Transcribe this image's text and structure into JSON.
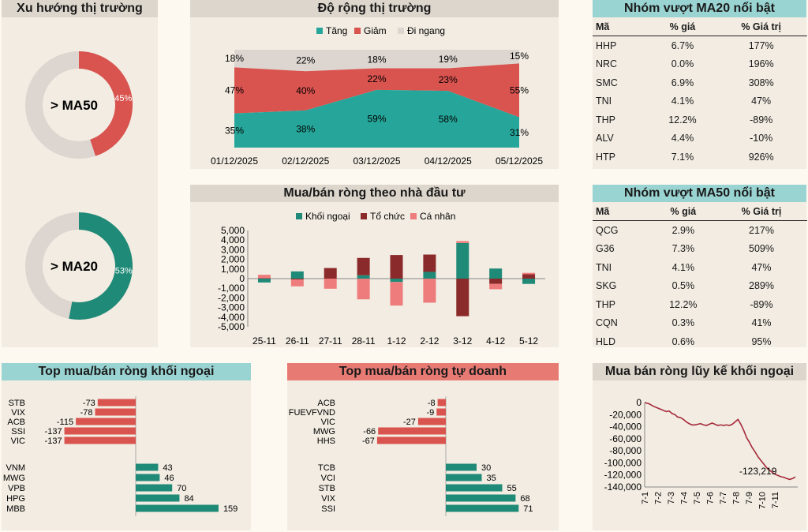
{
  "trend": {
    "title": "Xu hướng thị trường",
    "ma50": {
      "label": "> MA50",
      "pct_label": "45%",
      "fraction": 0.45,
      "color": "#d9534f"
    },
    "ma20": {
      "label": "> MA20",
      "pct_label": "53%",
      "fraction": 0.53,
      "color": "#1f8a77"
    }
  },
  "breadth": {
    "title": "Độ rộng thị trường",
    "legend": [
      "Tăng",
      "Giảm",
      "Đi ngang"
    ],
    "colors": [
      "#26a69a",
      "#d9534f",
      "#ddd6d0"
    ]
  },
  "netflow": {
    "title": "Mua/bán ròng theo nhà đầu tư",
    "legend": [
      "Khối ngoại",
      "Tổ chức",
      "Cá nhân"
    ],
    "colors": [
      "#1f8a77",
      "#8b2a2a",
      "#ef7c7c"
    ]
  },
  "ma20_table": {
    "title": "Nhóm vượt MA20 nổi bật",
    "headers": [
      "Mã",
      "% giá",
      "% Giá trị"
    ],
    "rows": [
      [
        "HHP",
        "6.7%",
        "177%"
      ],
      [
        "NRC",
        "0.0%",
        "196%"
      ],
      [
        "SMC",
        "6.9%",
        "308%"
      ],
      [
        "TNI",
        "4.1%",
        "47%"
      ],
      [
        "THP",
        "12.2%",
        "-89%"
      ],
      [
        "ALV",
        "4.4%",
        "-10%"
      ],
      [
        "HTP",
        "7.1%",
        "926%"
      ]
    ]
  },
  "ma50_table": {
    "title": "Nhóm vượt MA50 nổi bật",
    "headers": [
      "Mã",
      "% giá",
      "% Giá trị"
    ],
    "rows": [
      [
        "QCG",
        "2.9%",
        "217%"
      ],
      [
        "G36",
        "7.3%",
        "509%"
      ],
      [
        "TNI",
        "4.1%",
        "47%"
      ],
      [
        "SKG",
        "0.5%",
        "289%"
      ],
      [
        "THP",
        "12.2%",
        "-89%"
      ],
      [
        "CQN",
        "0.3%",
        "41%"
      ],
      [
        "HLD",
        "0.6%",
        "95%"
      ]
    ]
  },
  "foreign_top": {
    "title": "Top mua/bán ròng khối ngoại"
  },
  "prop_top": {
    "title": "Top mua/bán ròng tự doanh"
  },
  "cumulative": {
    "title": "Mua bán ròng lũy kế khối ngoại"
  },
  "chart_data": [
    {
      "type": "area",
      "title": "Độ rộng thị trường",
      "stacked_percent": true,
      "categories": [
        "01/12/2025",
        "02/12/2025",
        "03/12/2025",
        "04/12/2025",
        "05/12/2025"
      ],
      "series": [
        {
          "name": "Tăng",
          "values": [
            35,
            38,
            59,
            58,
            31
          ]
        },
        {
          "name": "Giảm",
          "values": [
            47,
            40,
            22,
            23,
            55
          ]
        },
        {
          "name": "Đi ngang",
          "values": [
            18,
            22,
            18,
            19,
            15
          ]
        }
      ],
      "labels": {
        "Tăng": [
          "35%",
          "38%",
          "59%",
          "58%",
          "31%"
        ],
        "Giảm": [
          "47%",
          "40%",
          "22%",
          "23%",
          "55%"
        ],
        "Đi ngang": [
          "18%",
          "22%",
          "18%",
          "19%",
          "15%"
        ]
      }
    },
    {
      "type": "bar",
      "title": "Mua/bán ròng theo nhà đầu tư",
      "stacked": true,
      "categories": [
        "25-11",
        "26-11",
        "27-11",
        "28-11",
        "1-12",
        "2-12",
        "3-12",
        "4-12",
        "5-12"
      ],
      "series": [
        {
          "name": "Khối ngoại",
          "values": [
            -400,
            750,
            0,
            350,
            -350,
            700,
            3700,
            1050,
            -550
          ]
        },
        {
          "name": "Tổ chức",
          "values": [
            50,
            -100,
            1100,
            1800,
            2450,
            1800,
            -3900,
            -550,
            450
          ]
        },
        {
          "name": "Cá nhân",
          "values": [
            350,
            -700,
            -1050,
            -2150,
            -2450,
            -2500,
            200,
            -550,
            150
          ]
        }
      ],
      "ylim": [
        -5000,
        5000
      ],
      "yticks": [
        "5,000",
        "4,000",
        "3,000",
        "2,000",
        "1,000",
        "0",
        "-1,000",
        "-2,000",
        "-3,000",
        "-4,000",
        "-5,000"
      ]
    },
    {
      "type": "bar",
      "title": "Top mua/bán ròng khối ngoại",
      "orientation": "horizontal",
      "sell": {
        "categories": [
          "STB",
          "VIX",
          "ACB",
          "SSI",
          "VIC"
        ],
        "values": [
          -73,
          -78,
          -115,
          -137,
          -137
        ],
        "labels": [
          "-73",
          "-78",
          "-115",
          "-137",
          "-137"
        ]
      },
      "buy": {
        "categories": [
          "VNM",
          "MWG",
          "VPB",
          "HPG",
          "MBB"
        ],
        "values": [
          43,
          46,
          70,
          84,
          159
        ],
        "labels": [
          "43",
          "46",
          "70",
          "84",
          "159"
        ]
      }
    },
    {
      "type": "bar",
      "title": "Top mua/bán ròng tự doanh",
      "orientation": "horizontal",
      "sell": {
        "categories": [
          "ACB",
          "FUEVFVND",
          "VIC",
          "MWG",
          "HHS"
        ],
        "values": [
          -8,
          -9,
          -27,
          -66,
          -67
        ],
        "labels": [
          "-8",
          "-9",
          "-27",
          "-66",
          "-67"
        ]
      },
      "buy": {
        "categories": [
          "TCB",
          "VCI",
          "STB",
          "VIX",
          "SSI"
        ],
        "values": [
          30,
          35,
          55,
          68,
          71
        ],
        "labels": [
          "30",
          "35",
          "55",
          "68",
          "71"
        ]
      }
    },
    {
      "type": "line",
      "title": "Mua bán ròng lũy kế khối ngoại",
      "x_ticks": [
        "7-1",
        "7-2",
        "7-3",
        "7-4",
        "7-5",
        "7-6",
        "7-7",
        "7-8",
        "7-9",
        "7-10",
        "7-11"
      ],
      "yticks": [
        "0",
        "-20,000",
        "-40,000",
        "-60,000",
        "-80,000",
        "-100,000",
        "-120,000",
        "-140,000"
      ],
      "ylim": [
        -140000,
        0
      ],
      "points": [
        [
          0,
          0
        ],
        [
          0.3,
          -2000
        ],
        [
          0.6,
          -6000
        ],
        [
          0.9,
          -9000
        ],
        [
          1.2,
          -12000
        ],
        [
          1.5,
          -15000
        ],
        [
          1.7,
          -14000
        ],
        [
          1.9,
          -18000
        ],
        [
          2.1,
          -20000
        ],
        [
          2.3,
          -24000
        ],
        [
          2.5,
          -25000
        ],
        [
          2.7,
          -28000
        ],
        [
          2.9,
          -32000
        ],
        [
          3.1,
          -35000
        ],
        [
          3.3,
          -37000
        ],
        [
          3.5,
          -37000
        ],
        [
          3.7,
          -36000
        ],
        [
          3.9,
          -35000
        ],
        [
          4.1,
          -37000
        ],
        [
          4.3,
          -38000
        ],
        [
          4.5,
          -36000
        ],
        [
          4.7,
          -34000
        ],
        [
          4.9,
          -36000
        ],
        [
          5.1,
          -38000
        ],
        [
          5.3,
          -37000
        ],
        [
          5.5,
          -38000
        ],
        [
          5.7,
          -37000
        ],
        [
          5.9,
          -38000
        ],
        [
          6.1,
          -36000
        ],
        [
          6.3,
          -32000
        ],
        [
          6.5,
          -28000
        ],
        [
          6.7,
          -36000
        ],
        [
          6.9,
          -46000
        ],
        [
          7.1,
          -58000
        ],
        [
          7.3,
          -66000
        ],
        [
          7.5,
          -75000
        ],
        [
          7.7,
          -82000
        ],
        [
          7.9,
          -90000
        ],
        [
          8.1,
          -96000
        ],
        [
          8.3,
          -102000
        ],
        [
          8.5,
          -108000
        ],
        [
          8.7,
          -112000
        ],
        [
          8.9,
          -116000
        ],
        [
          9.1,
          -119000
        ],
        [
          9.3,
          -121000
        ],
        [
          9.5,
          -123000
        ],
        [
          9.7,
          -124000
        ],
        [
          9.9,
          -126000
        ],
        [
          10.1,
          -127500
        ],
        [
          10.3,
          -126000
        ],
        [
          10.5,
          -123219
        ]
      ],
      "annotation": "-123,219"
    }
  ]
}
